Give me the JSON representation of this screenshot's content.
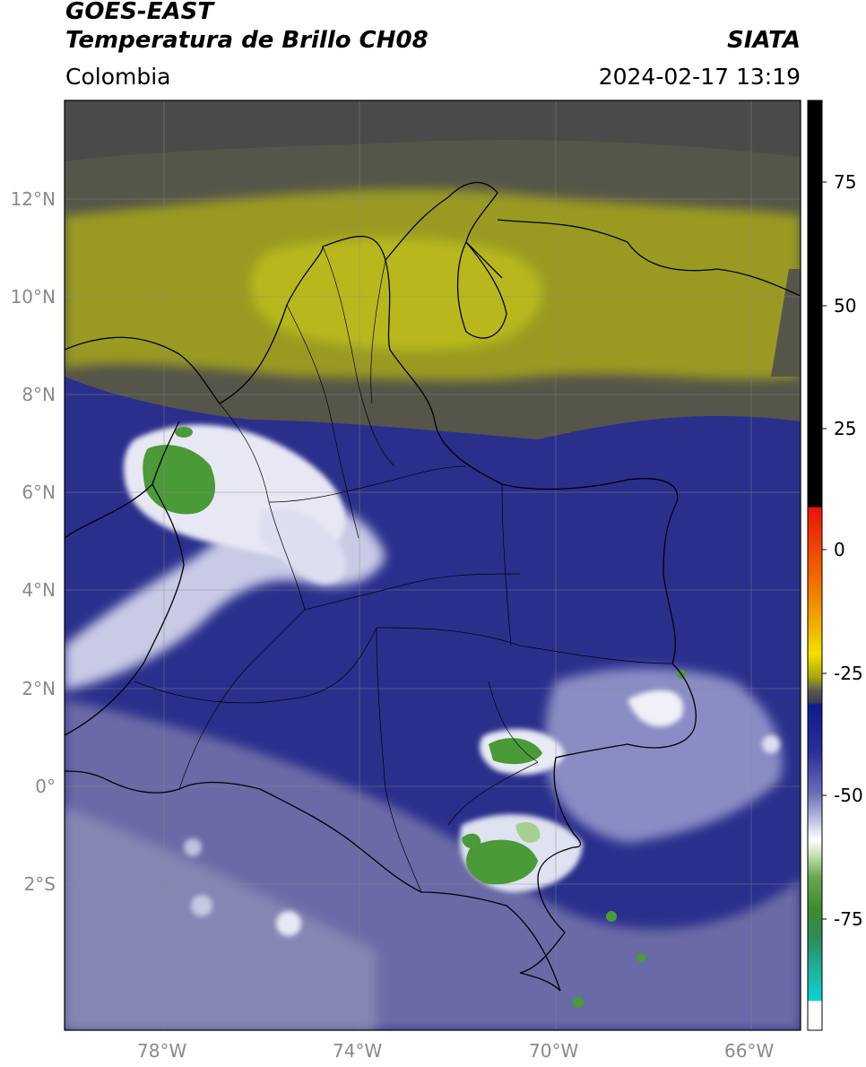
{
  "header": {
    "satellite": "GOES-EAST",
    "product": "Temperatura de Brillo CH08",
    "region": "Colombia",
    "source": "SIATA",
    "datetime": "2024-02-17 13:19"
  },
  "map": {
    "lat_ticks": [
      "12°N",
      "10°N",
      "8°N",
      "6°N",
      "4°N",
      "2°N",
      "0°",
      "2°S"
    ],
    "lon_ticks": [
      "78°W",
      "74°W",
      "70°W",
      "66°W"
    ],
    "lon_range": [
      -80,
      -65
    ],
    "lat_range": [
      -5,
      14
    ]
  },
  "colorbar": {
    "ticks": [
      "75",
      "50",
      "25",
      "0",
      "-25",
      "-50",
      "-75"
    ],
    "range": [
      -97,
      90
    ],
    "colors": {
      "black": "#000000",
      "red": "#e8140a",
      "orange": "#f08c00",
      "yellow": "#f5e000",
      "olive": "#a8a80f",
      "gray": "#5a5a50",
      "navy": "#0f1a8c",
      "blue": "#4a4ea8",
      "white": "#ffffff",
      "green": "#3d8a2d",
      "cyan": "#0fd2d2"
    }
  }
}
